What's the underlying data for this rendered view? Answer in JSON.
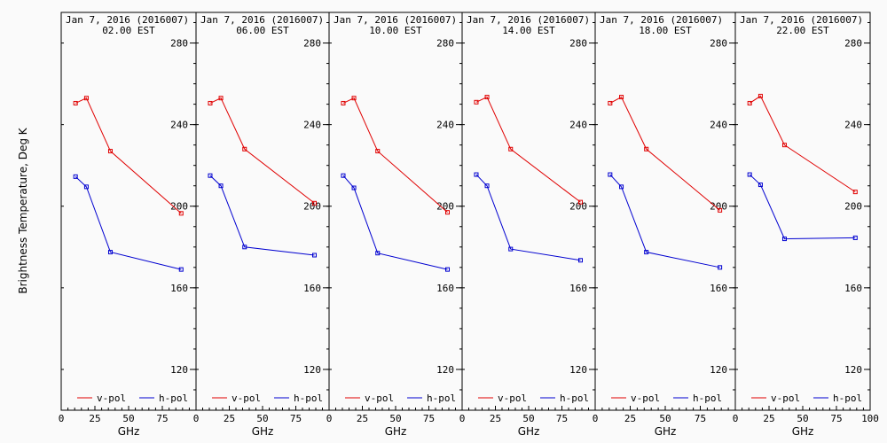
{
  "chart_data": {
    "type": "line",
    "ylabel": "Brightness Temperature, Deg K",
    "xlabel": "GHz",
    "xlim": [
      0,
      100
    ],
    "ylim": [
      100,
      295
    ],
    "yticks": [
      120,
      160,
      200,
      240,
      280
    ],
    "xticks": [
      0,
      25,
      50,
      75
    ],
    "xticks_last": [
      0,
      25,
      50,
      75,
      100
    ],
    "x": [
      10.65,
      18.7,
      36.5,
      89.0
    ],
    "legend": [
      "v-pol",
      "h-pol"
    ],
    "legend_position": "bottom",
    "colors": {
      "v-pol": "#e00000",
      "h-pol": "#0000d0"
    },
    "panels": [
      {
        "date": "Jan  7, 2016 (2016007)",
        "time": "02.00 EST",
        "series": [
          {
            "name": "v-pol",
            "values": [
              250.5,
              253,
              227,
              196.5
            ]
          },
          {
            "name": "h-pol",
            "values": [
              214.5,
              209.5,
              177.5,
              169
            ]
          }
        ]
      },
      {
        "date": "Jan  7, 2016 (2016007)",
        "time": "06.00 EST",
        "series": [
          {
            "name": "v-pol",
            "values": [
              250.5,
              253,
              228,
              201.5
            ]
          },
          {
            "name": "h-pol",
            "values": [
              215,
              210,
              180,
              176
            ]
          }
        ]
      },
      {
        "date": "Jan  7, 2016 (2016007)",
        "time": "10.00 EST",
        "series": [
          {
            "name": "v-pol",
            "values": [
              250.5,
              253,
              227,
              197
            ]
          },
          {
            "name": "h-pol",
            "values": [
              215,
              209,
              177,
              169
            ]
          }
        ]
      },
      {
        "date": "Jan  7, 2016 (2016007)",
        "time": "14.00 EST",
        "series": [
          {
            "name": "v-pol",
            "values": [
              251,
              253.5,
              228,
              202
            ]
          },
          {
            "name": "h-pol",
            "values": [
              215.5,
              210,
              179,
              173.5
            ]
          }
        ]
      },
      {
        "date": "Jan  7, 2016 (2016007)",
        "time": "18.00 EST",
        "series": [
          {
            "name": "v-pol",
            "values": [
              250.5,
              253.5,
              228,
              198
            ]
          },
          {
            "name": "h-pol",
            "values": [
              215.5,
              209.5,
              177.5,
              170
            ]
          }
        ]
      },
      {
        "date": "Jan  7, 2016 (2016007)",
        "time": "22.00 EST",
        "series": [
          {
            "name": "v-pol",
            "values": [
              250.5,
              254,
              230,
              207
            ]
          },
          {
            "name": "h-pol",
            "values": [
              215.5,
              210.5,
              184,
              184.5
            ]
          }
        ]
      }
    ]
  }
}
